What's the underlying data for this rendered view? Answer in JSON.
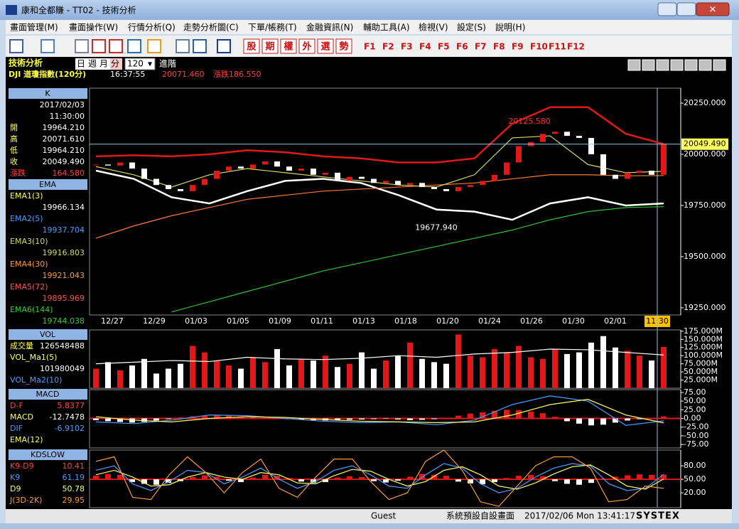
{
  "window": {
    "title": "康和全都賺 - TT02 - 技術分析",
    "menus": [
      "畫面管理(M)",
      "畫面操作(W)",
      "行情分析(Q)",
      "走勢分析圖(C)",
      "下單/帳務(T)",
      "金融資訊(N)",
      "輔助工具(A)",
      "檢視(V)",
      "設定(S)",
      "說明(H)"
    ],
    "toolbar_buttons": [
      "股",
      "期",
      "權",
      "外",
      "選",
      "勢"
    ],
    "function_keys": [
      "F1",
      "F2",
      "F3",
      "F4",
      "F5",
      "F6",
      "F7",
      "F8",
      "F9",
      "F10",
      "F11",
      "F12"
    ]
  },
  "header": {
    "panel_title": "技術分析",
    "periods": [
      "日",
      "週",
      "月",
      "分"
    ],
    "count": "120",
    "advanced": "進階",
    "symbol": "DJI  道瓊指數(120分)",
    "time": "16:37:55",
    "price": "20071.460",
    "change": "漲跌186.550"
  },
  "sidebar": [
    {
      "title": "K",
      "rows": [
        {
          "value": "2017/02/03"
        },
        {
          "value": "11:30:00"
        },
        {
          "label": "開",
          "value": "19964.210"
        },
        {
          "label": "高",
          "value": "20071.610"
        },
        {
          "label": "低",
          "value": "19964.210"
        },
        {
          "label": "收",
          "value": "20049.490"
        },
        {
          "label": "漲跌",
          "value": "164.580",
          "color": "#ff4040"
        }
      ]
    },
    {
      "title": "EMA",
      "rows": [
        {
          "label": "EMA1(3)",
          "color": "#ffff60"
        },
        {
          "value": "19966.134"
        },
        {
          "label": "EMA2(5)",
          "color": "#4a9cff"
        },
        {
          "value": "19937.704",
          "color": "#4a9cff"
        },
        {
          "label": "EMA3(10)",
          "color": "#d8d860"
        },
        {
          "value": "19916.803",
          "color": "#d8d860"
        },
        {
          "label": "EMA4(30)",
          "color": "#ff9933"
        },
        {
          "value": "19921.043",
          "color": "#ff9933"
        },
        {
          "label": "EMA5(72)",
          "color": "#ff5050"
        },
        {
          "value": "19895.969",
          "color": "#ff5050"
        },
        {
          "label": "EMA6(144)",
          "color": "#30d030"
        },
        {
          "value": "19744.038",
          "color": "#30d030"
        }
      ]
    },
    {
      "title": "VOL",
      "rows": [
        {
          "label": "成交量",
          "value": "126548488"
        },
        {
          "label": "VOL_Ma1(5)"
        },
        {
          "value": "101980049"
        },
        {
          "label": "VOL_Ma2(10)",
          "color": "#4a9cff"
        }
      ]
    },
    {
      "title": "MACD",
      "rows": [
        {
          "label": "D-F",
          "value": "5.8377",
          "color": "#ff4040"
        },
        {
          "label": "MACD",
          "value": "-12.7478"
        },
        {
          "label": "DIF",
          "value": "-6.9102",
          "color": "#4a9cff"
        },
        {
          "label": "EMA(12)",
          "color": "#ffff60"
        }
      ]
    },
    {
      "title": "KDSLOW",
      "rows": [
        {
          "label": "K9-D9",
          "value": "10.41",
          "color": "#ff4040"
        },
        {
          "label": "K9",
          "value": "61.19",
          "color": "#4a9cff"
        },
        {
          "label": "D9",
          "value": "50.78",
          "color": "#ffff60"
        },
        {
          "label": "J(3D-2K)",
          "value": "29.95",
          "color": "#ff9933"
        }
      ]
    }
  ],
  "status": {
    "user": "Guest",
    "layout": "系統預設自設畫面",
    "datetime": "2017/02/06 Mon 13:41:17",
    "brand": "SYSTEX"
  },
  "chart_data": [
    {
      "type": "candlestick",
      "up_color": "#e01818",
      "down_color": "#ffffff",
      "x_labels": [
        "12/27",
        "12/29",
        "01/03",
        "01/05",
        "01/09",
        "01/11",
        "01/13",
        "01/18",
        "01/20",
        "01/24",
        "01/26",
        "01/30",
        "02/01",
        "11:30"
      ],
      "close": [
        19950,
        19945,
        19960,
        19930,
        19880,
        19850,
        19830,
        19820,
        19850,
        19880,
        19920,
        19940,
        19930,
        19950,
        19965,
        19940,
        19920,
        19930,
        19900,
        19910,
        19870,
        19890,
        19880,
        19860,
        19870,
        19850,
        19860,
        19840,
        19830,
        19820,
        19840,
        19850,
        19870,
        19900,
        19960,
        20040,
        20060,
        20100,
        20110,
        20090,
        20080,
        20000,
        19900,
        19880,
        19910,
        19920,
        19900,
        20049.49
      ],
      "series": [
        {
          "color": "#e01818",
          "values": [
            19990,
            19995,
            19990,
            20000,
            20020,
            20010,
            19990,
            19980,
            19960,
            19960,
            19980,
            20150,
            20230,
            20230,
            20100,
            20050
          ]
        },
        {
          "color": "#ffffff",
          "values": [
            19920,
            19880,
            19790,
            19760,
            19820,
            19870,
            19880,
            19860,
            19800,
            19730,
            19720,
            19680,
            19760,
            19790,
            19750,
            19760
          ]
        },
        {
          "color": "#ff7a30",
          "values": [
            19590,
            19650,
            19700,
            19740,
            19780,
            19800,
            19820,
            19830,
            19840,
            19850,
            19860,
            19880,
            19900,
            19900,
            19895,
            19896
          ]
        },
        {
          "color": "#30c030",
          "values": [
            null,
            null,
            19230,
            19280,
            19330,
            19380,
            19430,
            19470,
            19510,
            19550,
            19590,
            19630,
            19680,
            19720,
            19740,
            19744
          ]
        },
        {
          "color": "#d8d860",
          "values": [
            19940,
            19900,
            19840,
            19900,
            19930,
            19910,
            19890,
            19870,
            19850,
            19840,
            19900,
            20080,
            20090,
            19950,
            19910,
            19917
          ]
        }
      ],
      "annotations": [
        {
          "value": 20125.58,
          "label": "20125.580"
        },
        {
          "value": 19677.94,
          "label": "19677.940"
        }
      ],
      "last_price": 20049.49,
      "last_price_label": "20049.490",
      "ylim": [
        19215,
        20323
      ],
      "yticks": [
        {
          "value": 20250,
          "label": "20250.000"
        },
        {
          "value": 20000,
          "label": "20000.000"
        },
        {
          "value": 19750,
          "label": "19750.000"
        },
        {
          "value": 19500,
          "label": "19500.000"
        },
        {
          "value": 19250,
          "label": "19250.000"
        }
      ]
    },
    {
      "type": "bar",
      "up_color": "#e01818",
      "down_color": "#ffffff",
      "values": [
        60,
        80,
        55,
        70,
        90,
        45,
        60,
        75,
        130,
        110,
        85,
        70,
        60,
        95,
        80,
        120,
        70,
        90,
        85,
        100,
        65,
        75,
        110,
        60,
        85,
        100,
        140,
        90,
        80,
        75,
        165,
        100,
        95,
        120,
        110,
        130,
        95,
        90,
        120,
        105,
        110,
        140,
        160,
        125,
        115,
        100,
        85,
        126.548488
      ],
      "series": [
        {
          "color": "#ffffff",
          "values": [
            75,
            80,
            85,
            82,
            95,
            90,
            88,
            92,
            100,
            95,
            105,
            110,
            120,
            118,
            110,
            101.980049
          ]
        }
      ],
      "ylim": [
        0,
        179
      ],
      "yticks": [
        {
          "value": 175,
          "label": "175.000M"
        },
        {
          "value": 150,
          "label": "150.000M"
        },
        {
          "value": 125,
          "label": "125.000M"
        },
        {
          "value": 100,
          "label": "100.000M"
        },
        {
          "value": 75,
          "label": "75.000M"
        },
        {
          "value": 50,
          "label": "50.000M"
        },
        {
          "value": 25,
          "label": "25.000M"
        }
      ]
    },
    {
      "type": "histogram-lines",
      "up_color": "#e01818",
      "down_color": "#ffffff",
      "values": [
        -5,
        -8,
        -10,
        -12,
        -10,
        -6,
        -2,
        3,
        6,
        8,
        9,
        8,
        6,
        4,
        3,
        2,
        -2,
        -4,
        -5,
        -6,
        -5,
        -4,
        -3,
        -2,
        -1,
        -3,
        -5,
        -4,
        -2,
        2,
        8,
        14,
        18,
        22,
        25,
        24,
        20,
        15,
        5,
        -8,
        -15,
        -20,
        -18,
        -12,
        -6,
        -2,
        2,
        5.8377
      ],
      "series": [
        {
          "color": "#4a9cff",
          "values": [
            -10,
            -15,
            -5,
            10,
            8,
            0,
            -8,
            -12,
            -10,
            -18,
            -5,
            40,
            65,
            50,
            -20,
            -6.9102
          ]
        },
        {
          "color": "#ffff60",
          "values": [
            5,
            -5,
            -10,
            0,
            5,
            3,
            -3,
            -8,
            -10,
            -12,
            -10,
            10,
            40,
            55,
            10,
            -12.7478
          ]
        }
      ],
      "ylim": [
        -85,
        83
      ],
      "yticks": [
        {
          "value": 75,
          "label": "75.00"
        },
        {
          "value": 50,
          "label": "50.00"
        },
        {
          "value": 25,
          "label": "25.00"
        },
        {
          "value": 0,
          "label": "0.00"
        },
        {
          "value": -25,
          "label": "-25.00"
        },
        {
          "value": -50,
          "label": "-50.00"
        },
        {
          "value": -75,
          "label": "-75.00"
        }
      ]
    },
    {
      "type": "histogram-lines",
      "up_color": "#e01818",
      "down_color": "#ffffff",
      "values": [
        8,
        12,
        10,
        -6,
        -10,
        -12,
        -8,
        -4,
        5,
        9,
        6,
        -3,
        -6,
        4,
        10,
        8,
        3,
        -5,
        -8,
        -6,
        4,
        7,
        5,
        -4,
        -7,
        -3,
        6,
        12,
        10,
        8,
        -5,
        -9,
        -11,
        -6,
        3,
        8,
        10,
        7,
        -4,
        -10,
        -12,
        -8,
        2,
        6,
        9,
        11,
        10,
        10.41
      ],
      "series": [
        {
          "color": "#4a9cff",
          "values": [
            70,
            80,
            40,
            25,
            45,
            70,
            65,
            40,
            55,
            75,
            50,
            30,
            45,
            70,
            80,
            60,
            35,
            30,
            60,
            85,
            75,
            40,
            20,
            30,
            55,
            75,
            85,
            80,
            40,
            25,
            30,
            61.19
          ]
        },
        {
          "color": "#ffff60",
          "values": [
            60,
            70,
            55,
            35,
            38,
            55,
            65,
            55,
            50,
            65,
            60,
            42,
            40,
            58,
            72,
            68,
            50,
            35,
            45,
            70,
            78,
            60,
            35,
            28,
            42,
            62,
            78,
            82,
            60,
            35,
            28,
            50.78
          ]
        },
        {
          "color": "#ff9933",
          "values": [
            90,
            100,
            10,
            5,
            60,
            100,
            65,
            20,
            65,
            95,
            30,
            10,
            55,
            95,
            95,
            45,
            5,
            20,
            90,
            115,
            70,
            0,
            -10,
            35,
            80,
            100,
            100,
            75,
            0,
            5,
            35,
            29.95
          ]
        }
      ],
      "ylim": [
        -13,
        115
      ],
      "yticks": [
        {
          "value": 80,
          "label": "80.00"
        },
        {
          "value": 50,
          "label": "50.00"
        },
        {
          "value": 20,
          "label": "20.00"
        }
      ]
    }
  ]
}
